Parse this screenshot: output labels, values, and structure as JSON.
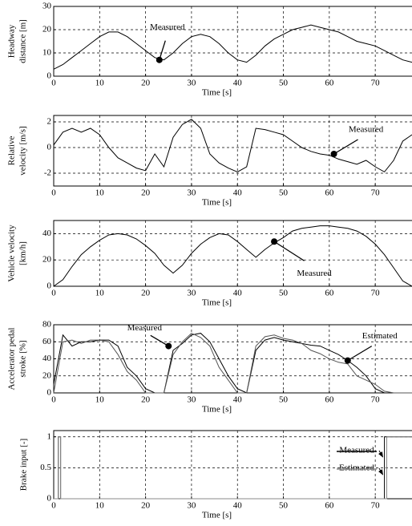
{
  "chart_data": [
    {
      "type": "line",
      "ylabel": [
        "Headway",
        "distance [m]"
      ],
      "xlabel": "Time [s]",
      "grid": true,
      "xlim": [
        0,
        78
      ],
      "xticks": [
        0,
        10,
        20,
        30,
        40,
        50,
        60,
        70
      ],
      "ylim": [
        0,
        30
      ],
      "yticks": [
        0,
        10,
        20,
        30
      ],
      "x": [
        0,
        2,
        4,
        6,
        8,
        10,
        12,
        14,
        16,
        18,
        20,
        22,
        24,
        26,
        28,
        30,
        32,
        34,
        36,
        38,
        40,
        42,
        44,
        46,
        48,
        50,
        52,
        54,
        56,
        58,
        60,
        62,
        64,
        66,
        68,
        70,
        72,
        74,
        76,
        78
      ],
      "series": [
        {
          "color": "#000000",
          "values": [
            3,
            5,
            8,
            11,
            14,
            17,
            19,
            19,
            17,
            14,
            11,
            8,
            7,
            10,
            14,
            17,
            18,
            17,
            14,
            10,
            7,
            6,
            9,
            13,
            16,
            18,
            20,
            21,
            22,
            21,
            20,
            19,
            17,
            15,
            14,
            13,
            11,
            9,
            7,
            6
          ]
        }
      ],
      "annotations": [
        {
          "text": "Measured",
          "x": 23,
          "y": 7
        }
      ]
    },
    {
      "type": "line",
      "ylabel": [
        "Relative",
        "velocity [m/s]"
      ],
      "xlabel": "Time [s]",
      "grid": true,
      "xlim": [
        0,
        78
      ],
      "xticks": [
        0,
        10,
        20,
        30,
        40,
        50,
        60,
        70
      ],
      "ylim": [
        -3,
        2.5
      ],
      "yticks": [
        -2,
        0,
        2
      ],
      "x": [
        0,
        2,
        4,
        6,
        8,
        10,
        12,
        14,
        16,
        18,
        20,
        22,
        24,
        26,
        28,
        30,
        32,
        34,
        36,
        38,
        40,
        42,
        44,
        46,
        48,
        50,
        52,
        54,
        56,
        58,
        60,
        62,
        64,
        66,
        68,
        70,
        72,
        74,
        76,
        78
      ],
      "series": [
        {
          "color": "#000000",
          "values": [
            0.2,
            1.2,
            1.5,
            1.2,
            1.5,
            1.0,
            0,
            -0.8,
            -1.2,
            -1.6,
            -1.8,
            -0.5,
            -1.5,
            0.8,
            1.8,
            2.2,
            1.5,
            -0.5,
            -1.2,
            -1.6,
            -1.9,
            -1.5,
            1.5,
            1.4,
            1.2,
            1.0,
            0.5,
            0,
            -0.3,
            -0.5,
            -0.6,
            -0.9,
            -1.1,
            -1.3,
            -1.0,
            -1.5,
            -1.9,
            -1.0,
            0.5,
            1
          ]
        }
      ],
      "annotations": [
        {
          "text": "Measured",
          "x": 61,
          "y": -0.5
        }
      ]
    },
    {
      "type": "line",
      "ylabel": [
        "Vehicle velocity",
        "[km/h]"
      ],
      "xlabel": "Time [s]",
      "grid": true,
      "xlim": [
        0,
        78
      ],
      "xticks": [
        0,
        10,
        20,
        30,
        40,
        50,
        60,
        70
      ],
      "ylim": [
        0,
        50
      ],
      "yticks": [
        0,
        20,
        40
      ],
      "x": [
        0,
        2,
        4,
        6,
        8,
        10,
        12,
        14,
        16,
        18,
        20,
        22,
        24,
        26,
        28,
        30,
        32,
        34,
        36,
        38,
        40,
        42,
        44,
        46,
        48,
        50,
        52,
        54,
        56,
        58,
        60,
        62,
        64,
        66,
        68,
        70,
        72,
        74,
        76,
        78
      ],
      "series": [
        {
          "color": "#000000",
          "values": [
            0,
            5,
            15,
            24,
            30,
            35,
            39,
            40,
            39,
            36,
            31,
            25,
            16,
            10,
            16,
            25,
            32,
            37,
            40,
            39,
            34,
            28,
            22,
            28,
            33,
            37,
            42,
            44,
            45,
            46,
            46,
            45,
            44,
            42,
            38,
            32,
            24,
            14,
            4,
            0
          ]
        }
      ],
      "annotations": [
        {
          "text": "Measured",
          "x": 48,
          "y": 34
        }
      ]
    },
    {
      "type": "line",
      "ylabel": [
        "Accelerator pedal",
        "stroke [%]"
      ],
      "xlabel": "Time [s]",
      "grid": true,
      "xlim": [
        0,
        78
      ],
      "xticks": [
        0,
        10,
        20,
        30,
        40,
        50,
        60,
        70
      ],
      "ylim": [
        0,
        80
      ],
      "yticks": [
        0,
        20,
        40,
        60,
        80
      ],
      "x": [
        0,
        2,
        4,
        6,
        8,
        10,
        12,
        14,
        16,
        18,
        20,
        22,
        24,
        26,
        28,
        30,
        32,
        34,
        36,
        38,
        40,
        42,
        44,
        46,
        48,
        50,
        52,
        54,
        56,
        58,
        60,
        62,
        64,
        66,
        68,
        70,
        72,
        74,
        76,
        78
      ],
      "series": [
        {
          "color": "#000000",
          "values": [
            10,
            68,
            55,
            60,
            60,
            62,
            62,
            55,
            30,
            20,
            5,
            0,
            0,
            50,
            58,
            68,
            70,
            60,
            40,
            20,
            5,
            0,
            50,
            62,
            65,
            62,
            60,
            58,
            56,
            55,
            50,
            45,
            38,
            30,
            20,
            5,
            0,
            0,
            0,
            0
          ]
        },
        {
          "color": "#555555",
          "values": [
            0,
            60,
            62,
            58,
            62,
            62,
            60,
            45,
            25,
            15,
            0,
            0,
            0,
            45,
            60,
            70,
            65,
            55,
            30,
            15,
            0,
            0,
            55,
            66,
            68,
            64,
            62,
            58,
            50,
            46,
            40,
            36,
            34,
            20,
            15,
            10,
            2,
            0,
            0,
            0
          ]
        }
      ],
      "annotations": [
        {
          "text": "Measured",
          "x": 25,
          "y": 55
        },
        {
          "text": "Estimated",
          "x": 64,
          "y": 38
        }
      ]
    },
    {
      "type": "line",
      "ylabel": [
        "Brake input [-]"
      ],
      "xlabel": "Time [s]",
      "grid": true,
      "xlim": [
        0,
        78
      ],
      "xticks": [
        0,
        10,
        20,
        30,
        40,
        50,
        60,
        70
      ],
      "ylim": [
        0,
        1.1
      ],
      "yticks": [
        0,
        0.5,
        1
      ],
      "x": [
        0,
        1,
        1,
        1.5,
        1.5,
        72,
        72,
        72.5,
        72.5,
        78
      ],
      "series": [
        {
          "name": "Measured",
          "color": "#000000",
          "values": [
            0,
            0,
            1,
            1,
            0,
            0,
            1,
            1,
            1,
            1
          ]
        },
        {
          "name": "Estimated",
          "color": "#888888",
          "values": [
            0,
            0,
            1,
            1,
            0,
            0,
            0,
            0,
            1,
            1
          ]
        }
      ]
    }
  ]
}
